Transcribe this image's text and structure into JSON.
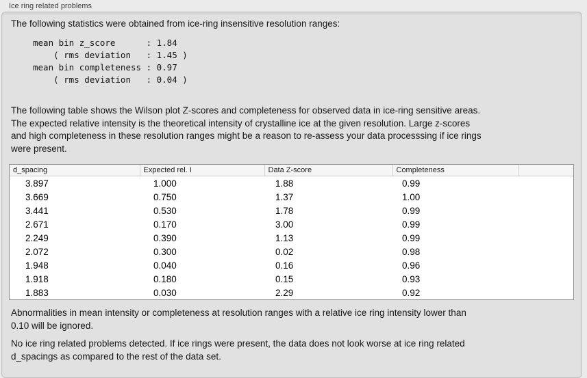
{
  "panel": {
    "title": "Ice ring related problems"
  },
  "stats": {
    "intro": "The following statistics were obtained from ice-ring insensitive resolution ranges:",
    "block": "mean bin z_score      : 1.84\n    ( rms deviation   : 1.45 )\nmean bin completeness : 0.97\n    ( rms deviation   : 0.04 )",
    "mean_bin_z_score": "1.84",
    "z_score_rms_deviation": "1.45",
    "mean_bin_completeness": "0.97",
    "completeness_rms_deviation": "0.04"
  },
  "table_intro": "The following table shows the Wilson plot Z-scores and completeness for observed data in ice-ring sensitive areas.\nThe expected relative intensity is the theoretical intensity of crystalline ice at the given resolution. Large z-scores\nand high completeness in these resolution ranges might be a reason to re-assess your data processsing if ice rings\nwere present.",
  "table": {
    "headers": [
      "d_spacing",
      "Expected rel. I",
      "Data Z-score",
      "Completeness",
      ""
    ],
    "rows": [
      [
        "3.897",
        "1.000",
        "1.88",
        "0.99"
      ],
      [
        "3.669",
        "0.750",
        "1.37",
        "1.00"
      ],
      [
        "3.441",
        "0.530",
        "1.78",
        "0.99"
      ],
      [
        "2.671",
        "0.170",
        "3.00",
        "0.99"
      ],
      [
        "2.249",
        "0.390",
        "1.13",
        "0.99"
      ],
      [
        "2.072",
        "0.300",
        "0.02",
        "0.98"
      ],
      [
        "1.948",
        "0.040",
        "0.16",
        "0.96"
      ],
      [
        "1.918",
        "0.180",
        "0.15",
        "0.93"
      ],
      [
        "1.883",
        "0.030",
        "2.29",
        "0.92"
      ]
    ]
  },
  "notes": {
    "ignore_note": "Abnormalities in mean intensity or completeness at resolution ranges with a relative ice ring intensity lower than\n0.10 will be ignored.",
    "conclusion": "No ice ring related problems detected. If ice rings were present, the data does not look worse at ice ring related\nd_spacings as compared to the rest of the data set."
  },
  "colors": {
    "page_background": "#ebebeb",
    "groupbox_background": "#e1e1e1",
    "groupbox_border": "#c2c1c1",
    "table_background": "#ffffff",
    "table_border": "#8f8f8f",
    "table_header_background": "#f5f5f5",
    "text": "#141414"
  }
}
